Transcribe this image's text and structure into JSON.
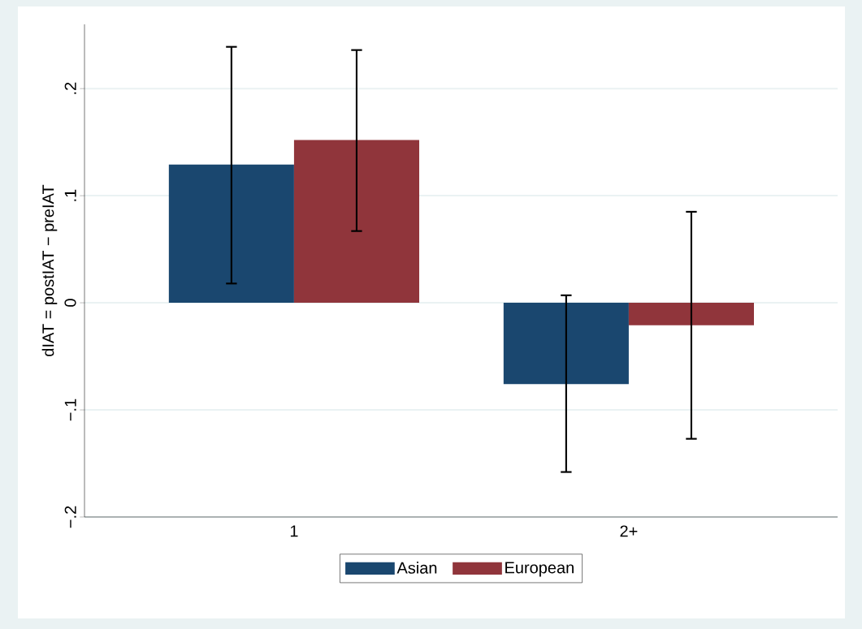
{
  "chart_data": {
    "type": "bar",
    "categories": [
      "1",
      "2+"
    ],
    "ylabel": "dIAT = postIAT − preIAT",
    "series": [
      {
        "name": "Asian",
        "color": "#1a476f",
        "values": [
          0.129,
          -0.076
        ],
        "errors": [
          [
            0.018,
            0.239
          ],
          [
            -0.158,
            0.007
          ]
        ]
      },
      {
        "name": "European",
        "color": "#90353b",
        "values": [
          0.152,
          -0.021
        ],
        "errors": [
          [
            0.067,
            0.236
          ],
          [
            -0.127,
            0.085
          ]
        ]
      }
    ],
    "ylim": [
      -0.2,
      0.26
    ],
    "yticks": [
      {
        "value": -0.2,
        "label": "−.2"
      },
      {
        "value": -0.1,
        "label": "−.1"
      },
      {
        "value": 0,
        "label": "0"
      },
      {
        "value": 0.1,
        "label": ".1"
      },
      {
        "value": 0.2,
        "label": ".2"
      }
    ],
    "grid": "y",
    "legend": "bottom"
  }
}
